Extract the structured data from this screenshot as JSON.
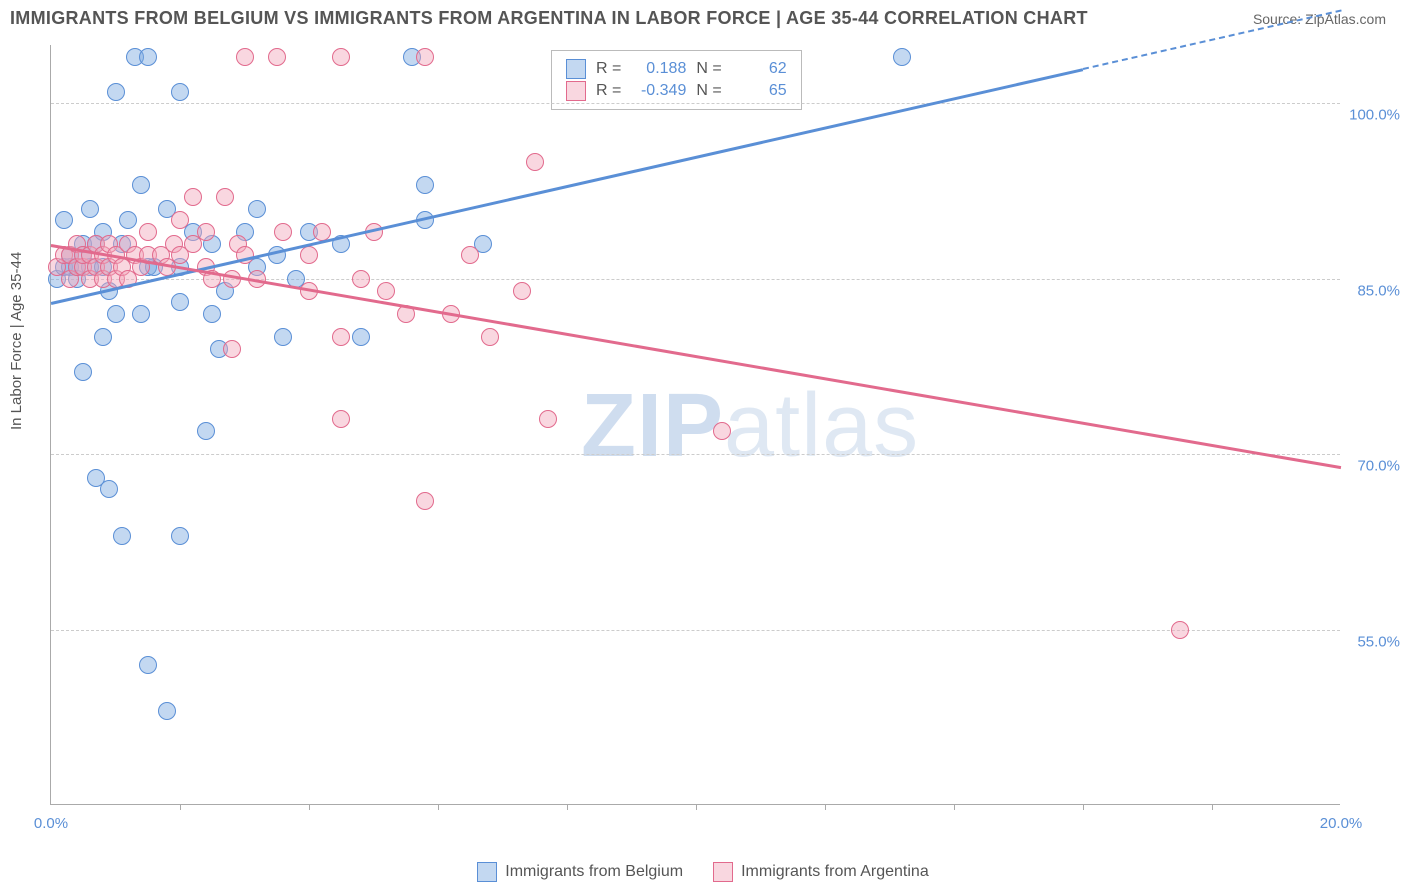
{
  "header": {
    "title": "IMMIGRANTS FROM BELGIUM VS IMMIGRANTS FROM ARGENTINA IN LABOR FORCE | AGE 35-44 CORRELATION CHART",
    "source": "Source: ZipAtlas.com",
    "y_label": "In Labor Force | Age 35-44"
  },
  "watermark": {
    "part1": "ZIP",
    "part2": "atlas"
  },
  "chart": {
    "type": "scatter",
    "background_color": "#ffffff",
    "grid_color": "#cccccc",
    "axis_color": "#aaaaaa",
    "xlim": [
      0,
      20
    ],
    "ylim": [
      40,
      105
    ],
    "x_tick_labels": [
      {
        "value": 0,
        "label": "0.0%"
      },
      {
        "value": 20,
        "label": "20.0%"
      }
    ],
    "x_ticks_minor": [
      2,
      4,
      6,
      8,
      10,
      12,
      14,
      16,
      18
    ],
    "y_tick_labels": [
      {
        "value": 55,
        "label": "55.0%"
      },
      {
        "value": 70,
        "label": "70.0%"
      },
      {
        "value": 85,
        "label": "85.0%"
      },
      {
        "value": 100,
        "label": "100.0%"
      }
    ],
    "series": [
      {
        "name": "Immigrants from Belgium",
        "color_fill": "rgba(122,168,224,0.45)",
        "color_line": "#5a8fd6",
        "css_class": "series-a",
        "regression": {
          "x1": 0,
          "y1": 83,
          "x2": 16,
          "y2": 103,
          "dash_after": 103
        },
        "stats": {
          "r": "0.188",
          "n": "62"
        },
        "points": [
          [
            0.1,
            85
          ],
          [
            0.2,
            86
          ],
          [
            0.3,
            86
          ],
          [
            0.3,
            87
          ],
          [
            0.4,
            85
          ],
          [
            0.4,
            86
          ],
          [
            0.5,
            87
          ],
          [
            0.5,
            88
          ],
          [
            0.2,
            90
          ],
          [
            0.6,
            91
          ],
          [
            0.6,
            86
          ],
          [
            0.7,
            88
          ],
          [
            0.8,
            89
          ],
          [
            0.8,
            86
          ],
          [
            0.9,
            84
          ],
          [
            1.3,
            104
          ],
          [
            1.5,
            104
          ],
          [
            1.0,
            101
          ],
          [
            5.6,
            104
          ],
          [
            0.5,
            77
          ],
          [
            0.7,
            68
          ],
          [
            0.9,
            67
          ],
          [
            1.1,
            63
          ],
          [
            0.8,
            80
          ],
          [
            1.0,
            82
          ],
          [
            1.2,
            90
          ],
          [
            1.4,
            93
          ],
          [
            1.4,
            82
          ],
          [
            1.5,
            86
          ],
          [
            1.8,
            91
          ],
          [
            1.6,
            86
          ],
          [
            1.1,
            88
          ],
          [
            2.0,
            86
          ],
          [
            2.0,
            83
          ],
          [
            2.2,
            89
          ],
          [
            2.0,
            101
          ],
          [
            2.5,
            82
          ],
          [
            2.5,
            88
          ],
          [
            2.7,
            84
          ],
          [
            2.6,
            79
          ],
          [
            2.4,
            72
          ],
          [
            3.0,
            89
          ],
          [
            3.2,
            91
          ],
          [
            3.2,
            86
          ],
          [
            3.5,
            87
          ],
          [
            3.6,
            80
          ],
          [
            3.8,
            85
          ],
          [
            4.0,
            89
          ],
          [
            4.5,
            88
          ],
          [
            4.8,
            80
          ],
          [
            5.8,
            90
          ],
          [
            5.8,
            93
          ],
          [
            6.7,
            88
          ],
          [
            1.5,
            52
          ],
          [
            1.8,
            48
          ],
          [
            2.0,
            63
          ],
          [
            13.2,
            104
          ]
        ]
      },
      {
        "name": "Immigrants from Argentina",
        "color_fill": "rgba(242,166,187,0.45)",
        "color_line": "#e26a8d",
        "css_class": "series-b",
        "regression": {
          "x1": 0,
          "y1": 88,
          "x2": 20,
          "y2": 69
        },
        "stats": {
          "r": "-0.349",
          "n": "65"
        },
        "points": [
          [
            0.1,
            86
          ],
          [
            0.2,
            87
          ],
          [
            0.3,
            87
          ],
          [
            0.3,
            85
          ],
          [
            0.4,
            86
          ],
          [
            0.4,
            88
          ],
          [
            0.5,
            86
          ],
          [
            0.5,
            87
          ],
          [
            0.6,
            87
          ],
          [
            0.6,
            85
          ],
          [
            0.7,
            86
          ],
          [
            0.7,
            88
          ],
          [
            0.8,
            87
          ],
          [
            0.8,
            85
          ],
          [
            0.9,
            86
          ],
          [
            0.9,
            88
          ],
          [
            1.0,
            87
          ],
          [
            1.0,
            85
          ],
          [
            1.1,
            86
          ],
          [
            1.2,
            88
          ],
          [
            1.2,
            85
          ],
          [
            1.3,
            87
          ],
          [
            1.4,
            86
          ],
          [
            1.5,
            87
          ],
          [
            1.5,
            89
          ],
          [
            1.7,
            87
          ],
          [
            1.8,
            86
          ],
          [
            1.9,
            88
          ],
          [
            2.0,
            90
          ],
          [
            2.0,
            87
          ],
          [
            2.2,
            92
          ],
          [
            2.2,
            88
          ],
          [
            2.4,
            86
          ],
          [
            2.4,
            89
          ],
          [
            2.5,
            85
          ],
          [
            2.7,
            92
          ],
          [
            2.8,
            85
          ],
          [
            2.8,
            79
          ],
          [
            2.9,
            88
          ],
          [
            3.0,
            87
          ],
          [
            3.0,
            104
          ],
          [
            3.2,
            85
          ],
          [
            3.5,
            104
          ],
          [
            3.6,
            89
          ],
          [
            4.0,
            87
          ],
          [
            4.0,
            84
          ],
          [
            4.2,
            89
          ],
          [
            4.5,
            104
          ],
          [
            4.5,
            80
          ],
          [
            4.8,
            85
          ],
          [
            4.5,
            73
          ],
          [
            5.0,
            89
          ],
          [
            5.2,
            84
          ],
          [
            5.5,
            82
          ],
          [
            5.8,
            104
          ],
          [
            5.8,
            66
          ],
          [
            6.2,
            82
          ],
          [
            6.5,
            87
          ],
          [
            6.8,
            80
          ],
          [
            7.3,
            84
          ],
          [
            7.5,
            95
          ],
          [
            7.7,
            73
          ],
          [
            10.4,
            72
          ],
          [
            17.5,
            55
          ]
        ]
      }
    ]
  },
  "legend": {
    "stats_box": {
      "r_label": "R =",
      "n_label": "N ="
    },
    "bottom": {
      "a": "Immigrants from Belgium",
      "b": "Immigrants from Argentina"
    }
  }
}
